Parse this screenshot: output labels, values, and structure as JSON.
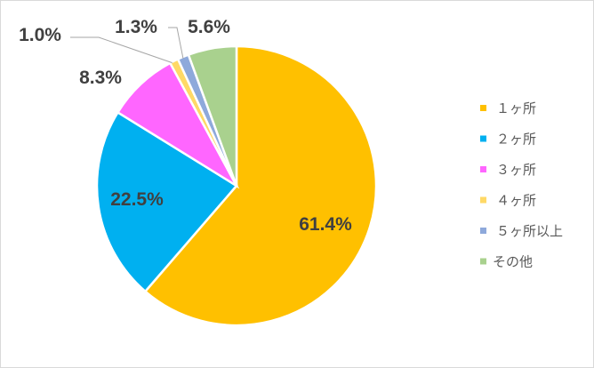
{
  "chart_data": {
    "type": "pie",
    "categories": [
      "１ヶ所",
      "２ヶ所",
      "３ヶ所",
      "４ヶ所",
      "５ヶ所以上",
      "その他"
    ],
    "values": [
      61.4,
      22.5,
      8.3,
      1.0,
      1.3,
      5.6
    ],
    "data_labels": [
      "61.4%",
      "22.5%",
      "8.3%",
      "1.0%",
      "1.3%",
      "5.6%"
    ],
    "colors": [
      "#FFC000",
      "#00B0F0",
      "#FF66FF",
      "#FFD966",
      "#8EA9DB",
      "#A9D18E"
    ],
    "start_angle": "top",
    "direction": "clockwise",
    "legend_position": "right"
  }
}
